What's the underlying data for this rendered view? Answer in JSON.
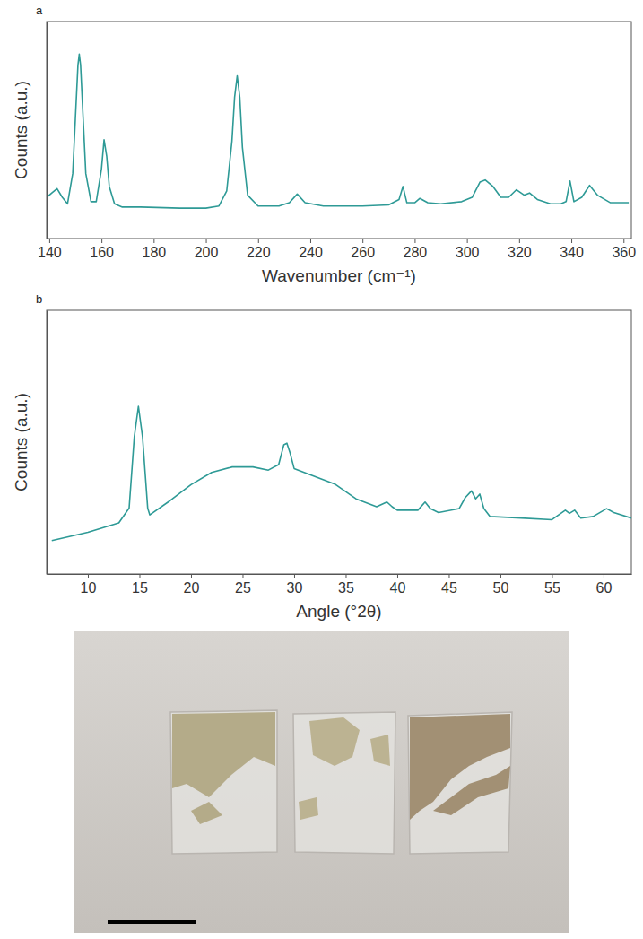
{
  "chart_data": [
    {
      "type": "line",
      "label": "a",
      "xlabel": "Wavenumber (cm⁻¹)",
      "ylabel": "Counts (a.u.)",
      "xlim": [
        139,
        363
      ],
      "xticks": [
        140,
        160,
        180,
        200,
        220,
        240,
        260,
        280,
        300,
        320,
        340,
        360
      ],
      "ylim": [
        0,
        100
      ],
      "tick_labels": "x",
      "grid": false,
      "color": "#2e9a96",
      "x": [
        139,
        141,
        143,
        145,
        147,
        149,
        150,
        151,
        151.5,
        152,
        153,
        154,
        156,
        158,
        160,
        161,
        162,
        163,
        165,
        168,
        175,
        190,
        200,
        205,
        208,
        210,
        211,
        212,
        213,
        214,
        216,
        220,
        228,
        232,
        235,
        238,
        245,
        260,
        270,
        274,
        275.5,
        277,
        280,
        282,
        285,
        290,
        298,
        302,
        305,
        307,
        310,
        313,
        316,
        319,
        322,
        324,
        327,
        332,
        336,
        338,
        339.5,
        341,
        344,
        347,
        350,
        355,
        362
      ],
      "values": [
        19,
        21,
        23,
        19,
        16,
        30,
        55,
        80,
        85,
        80,
        55,
        30,
        17,
        17,
        32,
        45.5,
        38,
        24,
        16,
        14.5,
        14.5,
        14,
        14,
        15,
        22,
        45,
        65,
        75,
        65,
        42,
        20,
        15,
        15,
        16.5,
        20.5,
        16.5,
        15,
        15,
        15.5,
        18,
        24,
        16.5,
        16.5,
        18.5,
        16.5,
        16,
        17,
        19,
        26,
        27,
        24,
        19,
        19,
        22.5,
        20,
        21,
        18,
        16,
        16,
        17,
        26.5,
        17,
        19,
        24.5,
        20,
        16.5,
        16.5
      ]
    },
    {
      "type": "line",
      "label": "b",
      "xlabel": "Angle (°2θ)",
      "ylabel": "Counts (a.u.)",
      "xlim": [
        6,
        62.7
      ],
      "xticks": [
        10,
        15,
        20,
        25,
        30,
        35,
        40,
        45,
        50,
        55,
        60
      ],
      "ylim": [
        0,
        100
      ],
      "tick_labels": "x",
      "grid": false,
      "color": "#2e9a96",
      "x": [
        6.5,
        10,
        13,
        14,
        14.5,
        14.9,
        15.3,
        15.8,
        16,
        18,
        20,
        22,
        24,
        26,
        27.5,
        28.5,
        29,
        29.3,
        29.6,
        30,
        32,
        34,
        36,
        38,
        39,
        39.5,
        40,
        42,
        42.7,
        43.2,
        44,
        46,
        46.6,
        47.2,
        47.6,
        48,
        48.4,
        49,
        52,
        55,
        56.3,
        56.7,
        57.2,
        57.8,
        59,
        60.3,
        61,
        62.7
      ],
      "values": [
        12.7,
        15.8,
        19.4,
        25,
        52,
        63.6,
        52,
        25,
        22.4,
        27.9,
        33.9,
        38.5,
        40.6,
        40.6,
        39.4,
        41.5,
        49,
        49.6,
        46,
        40,
        37,
        34,
        28.5,
        25.5,
        27.3,
        25.5,
        24.2,
        24.2,
        27.3,
        24.8,
        23.3,
        24.8,
        29,
        31.5,
        28.5,
        30.3,
        24.8,
        21.8,
        21.2,
        20.6,
        24.2,
        23,
        24.2,
        21.2,
        21.8,
        24.8,
        23.3,
        21.2
      ]
    }
  ]
}
